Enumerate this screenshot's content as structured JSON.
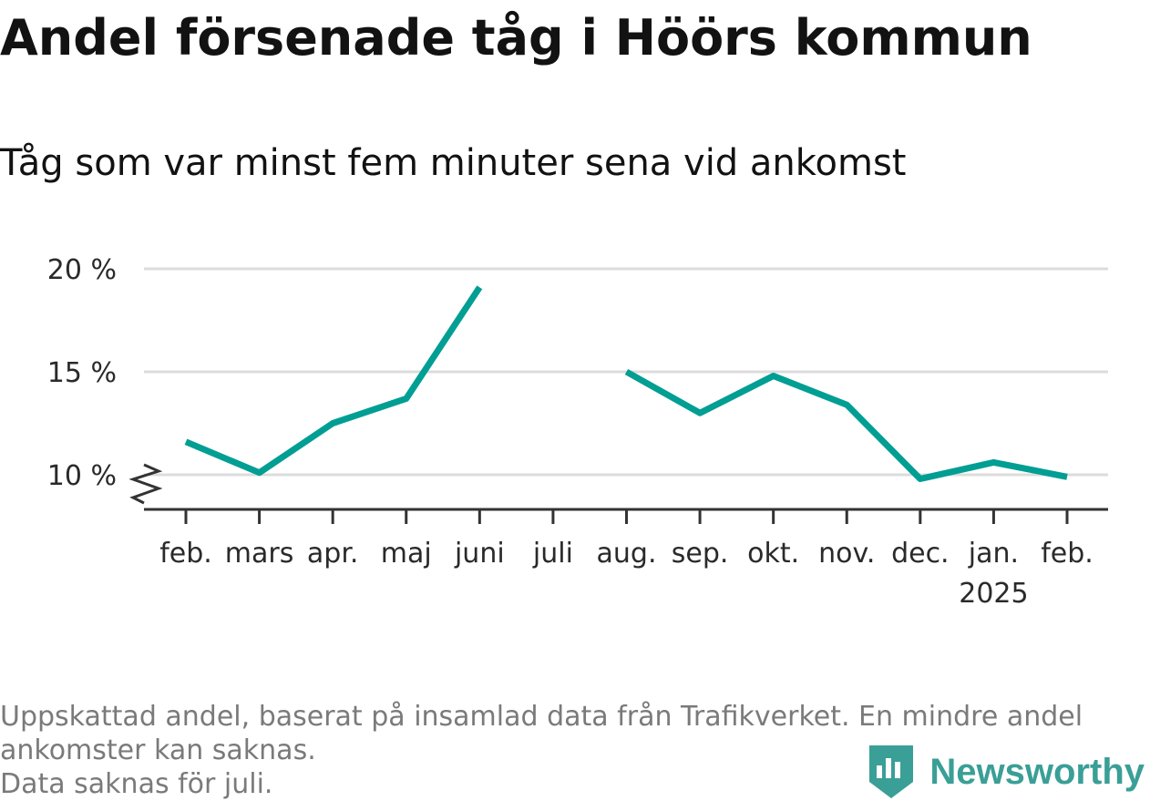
{
  "title": "Andel försenade tåg i Höörs kommun",
  "subtitle": "Tåg som var minst fem minuter sena vid ankomst",
  "chart_data": {
    "type": "line",
    "categories": [
      "feb.",
      "mars",
      "apr.",
      "maj",
      "juni",
      "juli",
      "aug.",
      "sep.",
      "okt.",
      "nov.",
      "dec.",
      "jan.",
      "feb."
    ],
    "year_label": "2025",
    "year_label_under": "jan.",
    "series": [
      {
        "values": [
          11.6,
          10.1,
          12.5,
          13.7,
          19.1,
          null,
          15.0,
          13.0,
          14.8,
          13.4,
          9.8,
          10.6,
          9.9
        ]
      }
    ],
    "y_ticks": [
      10,
      15,
      20
    ],
    "y_tick_labels": [
      "10 %",
      "15 %",
      "20 %"
    ],
    "ylim": [
      8.3,
      20
    ],
    "axis_break": true,
    "grid": true,
    "line_color": "#009e93",
    "grid_color": "#dcdcdc"
  },
  "footer": {
    "line1": "Uppskattad andel, baserat på insamlad data från Trafikverket. En mindre andel",
    "line2": "ankomster kan saknas.",
    "line3": "Data saknas för juli."
  },
  "brand": {
    "name": "Newsworthy",
    "icon": "newsworthy-logo-icon",
    "color": "#3a9f96"
  }
}
